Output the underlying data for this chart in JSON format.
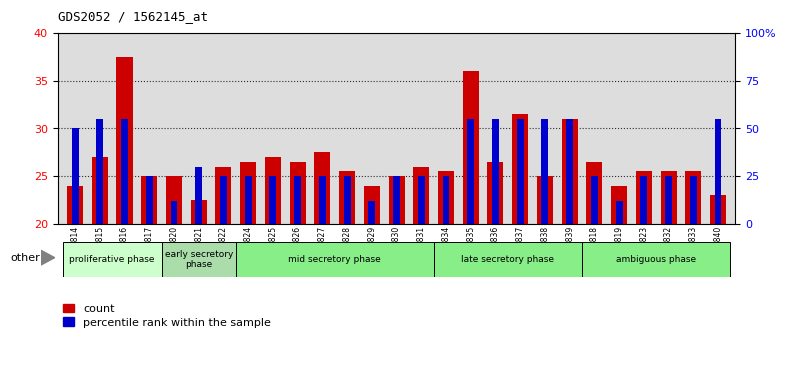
{
  "title": "GDS2052 / 1562145_at",
  "samples": [
    "GSM109814",
    "GSM109815",
    "GSM109816",
    "GSM109817",
    "GSM109820",
    "GSM109821",
    "GSM109822",
    "GSM109824",
    "GSM109825",
    "GSM109826",
    "GSM109827",
    "GSM109828",
    "GSM109829",
    "GSM109830",
    "GSM109831",
    "GSM109834",
    "GSM109835",
    "GSM109836",
    "GSM109837",
    "GSM109838",
    "GSM109839",
    "GSM109818",
    "GSM109819",
    "GSM109823",
    "GSM109832",
    "GSM109833",
    "GSM109840"
  ],
  "count_values": [
    24.0,
    27.0,
    37.5,
    25.0,
    25.0,
    22.5,
    26.0,
    26.5,
    27.0,
    26.5,
    27.5,
    25.5,
    24.0,
    25.0,
    26.0,
    25.5,
    36.0,
    26.5,
    31.5,
    25.0,
    31.0,
    26.5,
    24.0,
    25.5,
    25.5,
    25.5,
    23.0
  ],
  "percentile_values": [
    50,
    55,
    55,
    25,
    12,
    30,
    25,
    25,
    25,
    25,
    25,
    25,
    12,
    25,
    25,
    25,
    55,
    55,
    55,
    55,
    55,
    25,
    12,
    25,
    25,
    25,
    55
  ],
  "phase_defs": [
    {
      "label": "proliferative phase",
      "start": 0,
      "end": 3,
      "color": "#ccffcc"
    },
    {
      "label": "early secretory\nphase",
      "start": 4,
      "end": 6,
      "color": "#aaddaa"
    },
    {
      "label": "mid secretory phase",
      "start": 7,
      "end": 14,
      "color": "#88ee88"
    },
    {
      "label": "late secretory phase",
      "start": 15,
      "end": 20,
      "color": "#88ee88"
    },
    {
      "label": "ambiguous phase",
      "start": 21,
      "end": 26,
      "color": "#88ee88"
    }
  ],
  "ylim_left": [
    20,
    40
  ],
  "ylim_right": [
    0,
    100
  ],
  "count_color": "#cc0000",
  "percentile_color": "#0000cc",
  "bg_color": "#dddddd"
}
